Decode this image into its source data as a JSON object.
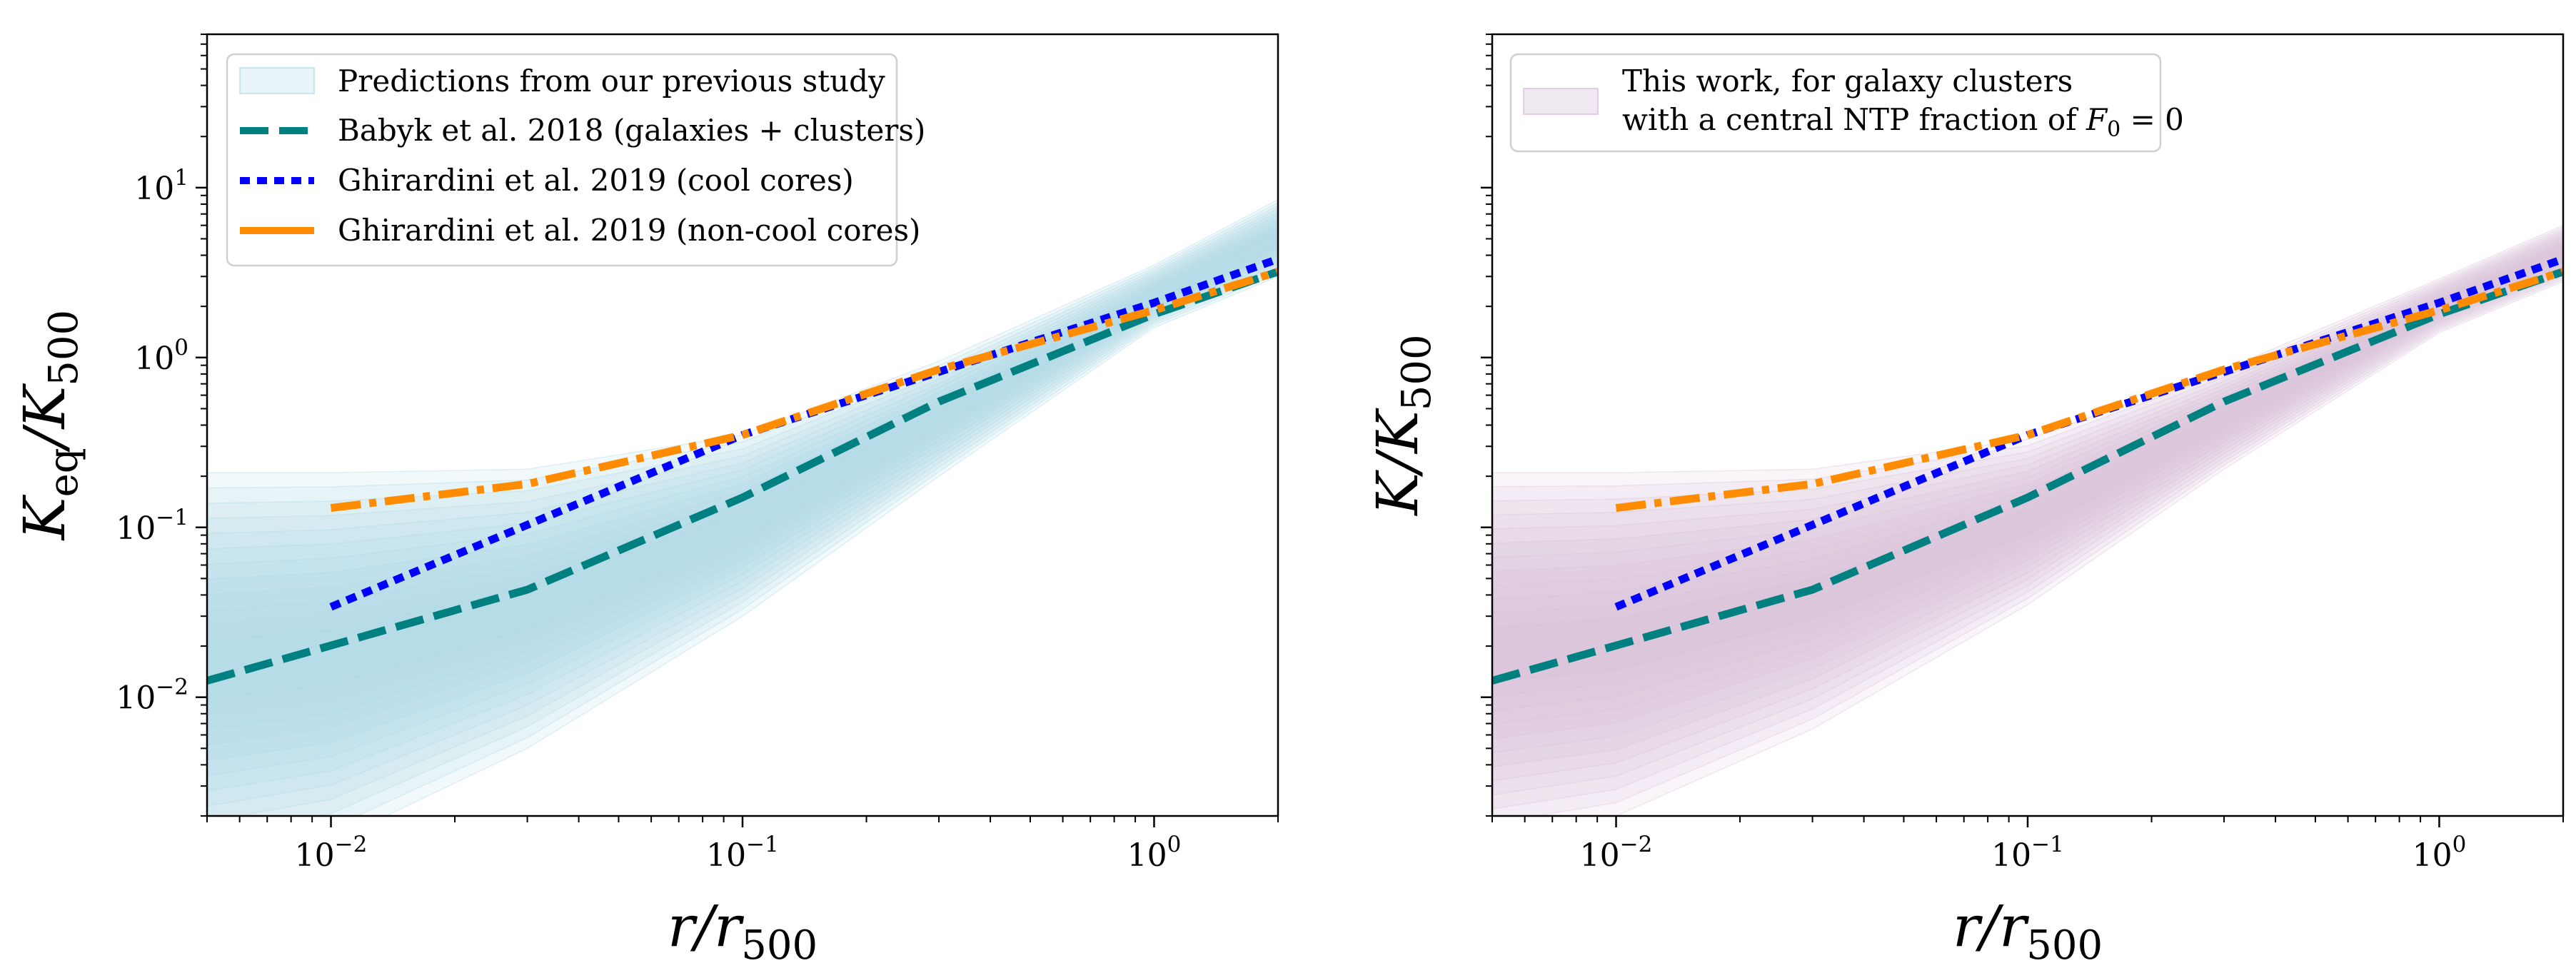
{
  "chart_data": [
    {
      "type": "line",
      "panel": "left",
      "xlabel": "r/r500",
      "ylabel": "Keq/K500",
      "xscale": "log",
      "yscale": "log",
      "xlim": [
        0.005,
        2.0
      ],
      "ylim": [
        0.002,
        80
      ],
      "x_ticks": [
        {
          "value": 0.01,
          "label": "10^-2"
        },
        {
          "value": 0.1,
          "label": "10^-1"
        },
        {
          "value": 1,
          "label": "10^0"
        }
      ],
      "y_ticks": [
        {
          "value": 0.01,
          "label": "10^-2"
        },
        {
          "value": 0.1,
          "label": "10^-1"
        },
        {
          "value": 1,
          "label": "10^0"
        },
        {
          "value": 10,
          "label": "10^1"
        }
      ],
      "grid": false,
      "legend_position": "upper-left",
      "band": {
        "name": "Predictions from our previous study",
        "color": "#add8e6",
        "x": [
          0.005,
          0.01,
          0.03,
          0.1,
          0.3,
          1.0,
          2.0
        ],
        "y_upper": [
          0.21,
          0.21,
          0.22,
          0.35,
          0.95,
          3.5,
          8.5
        ],
        "y_lower": [
          0.001,
          0.0014,
          0.005,
          0.03,
          0.2,
          1.5,
          3.0
        ]
      },
      "series": [
        {
          "name": "Babyk et al. 2018 (galaxies + clusters)",
          "color": "#008080",
          "style": "dashed",
          "x": [
            0.005,
            0.03,
            0.1,
            0.3,
            1.0,
            2.0
          ],
          "y": [
            0.0125,
            0.043,
            0.15,
            0.55,
            1.8,
            3.2
          ]
        },
        {
          "name": "Ghirardini et al. 2019 (cool cores)",
          "color": "#0000ff",
          "style": "dotted",
          "x": [
            0.01,
            0.1,
            1.0,
            2.0
          ],
          "y": [
            0.034,
            0.35,
            2.1,
            3.8
          ]
        },
        {
          "name": "Ghirardini et al. 2019 (non-cool cores)",
          "color": "#ff8c00",
          "style": "dashdot",
          "x": [
            0.01,
            0.03,
            0.1,
            0.3,
            1.0,
            2.0
          ],
          "y": [
            0.13,
            0.18,
            0.35,
            0.85,
            1.9,
            3.2
          ]
        }
      ]
    },
    {
      "type": "line",
      "panel": "right",
      "xlabel": "r/r500",
      "ylabel": "K/K500",
      "xscale": "log",
      "yscale": "log",
      "xlim": [
        0.005,
        2.0
      ],
      "ylim": [
        0.002,
        80
      ],
      "x_ticks": [
        {
          "value": 0.01,
          "label": "10^-2"
        },
        {
          "value": 0.1,
          "label": "10^-1"
        },
        {
          "value": 1,
          "label": "10^0"
        }
      ],
      "y_ticks": [],
      "grid": false,
      "legend_position": "upper-left",
      "band": {
        "name": "This work, for galaxy clusters with a central NTP fraction of F0 = 0",
        "color": "#d8bfd8",
        "x": [
          0.005,
          0.01,
          0.03,
          0.1,
          0.3,
          1.0,
          2.0
        ],
        "y_upper": [
          0.21,
          0.21,
          0.22,
          0.33,
          0.85,
          2.9,
          6.0
        ],
        "y_lower": [
          0.0015,
          0.002,
          0.0065,
          0.035,
          0.22,
          1.4,
          2.8
        ]
      },
      "series": [
        {
          "name": "Babyk et al. 2018 (galaxies + clusters)",
          "color": "#008080",
          "style": "dashed",
          "x": [
            0.005,
            0.03,
            0.1,
            0.3,
            1.0,
            2.0
          ],
          "y": [
            0.0125,
            0.043,
            0.15,
            0.55,
            1.8,
            3.2
          ]
        },
        {
          "name": "Ghirardini et al. 2019 (cool cores)",
          "color": "#0000ff",
          "style": "dotted",
          "x": [
            0.01,
            0.1,
            1.0,
            2.0
          ],
          "y": [
            0.034,
            0.35,
            2.1,
            3.8
          ]
        },
        {
          "name": "Ghirardini et al. 2019 (non-cool cores)",
          "color": "#ff8c00",
          "style": "dashdot",
          "x": [
            0.01,
            0.03,
            0.1,
            0.3,
            1.0,
            2.0
          ],
          "y": [
            0.13,
            0.18,
            0.35,
            0.85,
            1.9,
            3.2
          ]
        }
      ]
    }
  ],
  "legend_left": [
    {
      "label": "Predictions from our previous study",
      "swatch": "band"
    },
    {
      "label": "Babyk et al. 2018 (galaxies + clusters)",
      "swatch": "dashed"
    },
    {
      "label": "Ghirardini et al. 2019 (cool cores)",
      "swatch": "dotted"
    },
    {
      "label": "Ghirardini et al. 2019 (non-cool cores)",
      "swatch": "dashdot"
    }
  ],
  "legend_right": {
    "line1": "This work, for galaxy clusters",
    "line2_prefix": "with a central NTP fraction of ",
    "line2_symbol": "F",
    "line2_symbol_sub": "0",
    "line2_suffix": " = 0"
  },
  "labels": {
    "x_main": "r/r",
    "x_sub": "500",
    "y_left_main": "K",
    "y_left_sub1": "eq",
    "y_left_mid": "/K",
    "y_left_sub2": "500",
    "y_right_main": "K/K",
    "y_right_sub": "500"
  }
}
